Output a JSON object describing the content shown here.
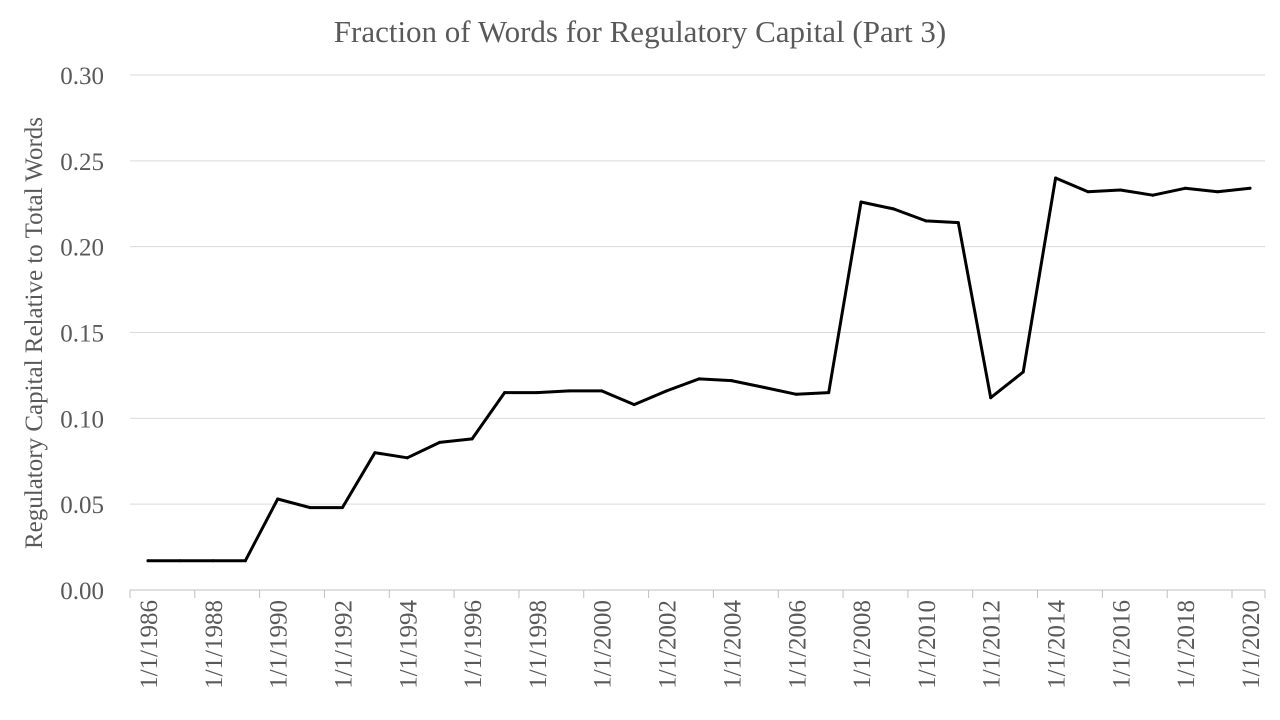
{
  "chart_data": {
    "type": "line",
    "title": "Fraction of Words for Regulatory Capital (Part 3)",
    "xlabel": "",
    "ylabel": "Regulatory Capital Relative to Total Words",
    "ylim": [
      0,
      0.3
    ],
    "y_ticks": [
      "0.00",
      "0.05",
      "0.10",
      "0.15",
      "0.20",
      "0.25",
      "0.30"
    ],
    "grid": true,
    "x_tick_labels": [
      "1/1/1986",
      "1/1/1988",
      "1/1/1990",
      "1/1/1992",
      "1/1/1994",
      "1/1/1996",
      "1/1/1998",
      "1/1/2000",
      "1/1/2002",
      "1/1/2004",
      "1/1/2006",
      "1/1/2008",
      "1/1/2010",
      "1/1/2012",
      "1/1/2014",
      "1/1/2016",
      "1/1/2018",
      "1/1/2020"
    ],
    "series": [
      {
        "x": [
          "1/1/1986",
          "1/1/1987",
          "1/1/1988",
          "1/1/1989",
          "1/1/1990",
          "1/1/1991",
          "1/1/1992",
          "1/1/1993",
          "1/1/1994",
          "1/1/1995",
          "1/1/1996",
          "1/1/1997",
          "1/1/1998",
          "1/1/1999",
          "1/1/2000",
          "1/1/2001",
          "1/1/2002",
          "1/1/2003",
          "1/1/2004",
          "1/1/2005",
          "1/1/2006",
          "1/1/2007",
          "1/1/2008",
          "1/1/2009",
          "1/1/2010",
          "1/1/2011",
          "1/1/2012",
          "1/1/2013",
          "1/1/2014",
          "1/1/2015",
          "1/1/2016",
          "1/1/2017",
          "1/1/2018",
          "1/1/2019",
          "1/1/2020"
        ],
        "values": [
          0.017,
          0.017,
          0.017,
          0.017,
          0.053,
          0.048,
          0.048,
          0.08,
          0.077,
          0.086,
          0.088,
          0.115,
          0.115,
          0.116,
          0.116,
          0.108,
          0.116,
          0.123,
          0.122,
          0.118,
          0.114,
          0.115,
          0.226,
          0.222,
          0.215,
          0.214,
          0.112,
          0.127,
          0.24,
          0.232,
          0.233,
          0.23,
          0.234,
          0.232,
          0.234
        ],
        "color": "#000000"
      }
    ]
  }
}
